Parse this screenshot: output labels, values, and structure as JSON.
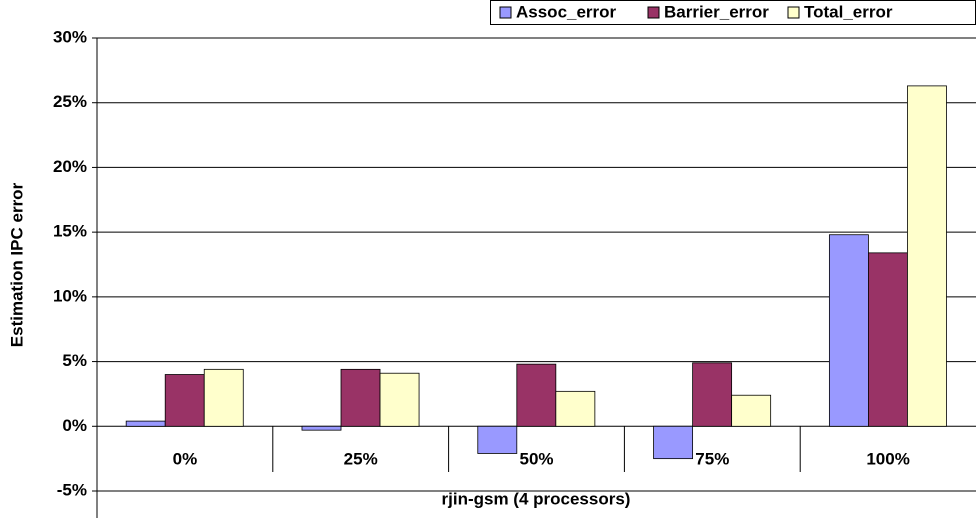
{
  "chart_data": {
    "type": "bar",
    "categories": [
      "0%",
      "25%",
      "50%",
      "75%",
      "100%"
    ],
    "series": [
      {
        "name": "Assoc_error",
        "color": "#9999ff",
        "values": [
          0.4,
          -0.3,
          -2.1,
          -2.5,
          14.8
        ]
      },
      {
        "name": "Barrier_error",
        "color": "#993366",
        "values": [
          4.0,
          4.4,
          4.8,
          4.9,
          13.4
        ]
      },
      {
        "name": "Total_error",
        "color": "#ffffcc",
        "values": [
          4.4,
          4.1,
          2.7,
          2.4,
          26.3
        ]
      }
    ],
    "ylabel": "Estimation IPC error",
    "xlabel": "rjin-gsm (4 processors)",
    "ylim": [
      -5,
      30
    ],
    "yticks": [
      {
        "value": -5,
        "label": "-5%"
      },
      {
        "value": 0,
        "label": "0%"
      },
      {
        "value": 5,
        "label": "5%"
      },
      {
        "value": 10,
        "label": "10%"
      },
      {
        "value": 15,
        "label": "15%"
      },
      {
        "value": 20,
        "label": "20%"
      },
      {
        "value": 25,
        "label": "25%"
      },
      {
        "value": 30,
        "label": "30%"
      }
    ],
    "grid": true,
    "legend": "top-right"
  }
}
